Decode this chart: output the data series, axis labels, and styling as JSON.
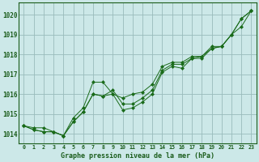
{
  "background_color": "#cce8e8",
  "plot_bg_color": "#cce8e8",
  "grid_color": "#99bbbb",
  "line_color": "#1a6b1a",
  "marker_color": "#1a6b1a",
  "xlabel": "Graphe pression niveau de la mer (hPa)",
  "ylim": [
    1013.5,
    1020.6
  ],
  "xlim": [
    -0.5,
    23.5
  ],
  "yticks": [
    1014,
    1015,
    1016,
    1017,
    1018,
    1019,
    1020
  ],
  "xticks": [
    0,
    1,
    2,
    3,
    4,
    5,
    6,
    7,
    8,
    9,
    10,
    11,
    12,
    13,
    14,
    15,
    16,
    17,
    18,
    19,
    20,
    21,
    22,
    23
  ],
  "xtick_labels": [
    "0",
    "1",
    "2",
    "3",
    "4",
    "5",
    "6",
    "7",
    "8",
    "9",
    "10",
    "11",
    "12",
    "13",
    "14",
    "15",
    "16",
    "17",
    "18",
    "19",
    "20",
    "21",
    "22",
    "23"
  ],
  "series": [
    [
      1014.4,
      1014.3,
      1014.3,
      1014.1,
      1013.9,
      1014.8,
      1015.3,
      1016.6,
      1016.6,
      1016.0,
      1015.8,
      1016.0,
      1016.1,
      1016.5,
      1017.4,
      1017.6,
      1017.6,
      1017.9,
      1017.9,
      1018.4,
      1018.4,
      1019.0,
      1019.4,
      1020.2
    ],
    [
      1014.4,
      1014.2,
      1014.1,
      1014.1,
      1013.9,
      1014.6,
      1015.1,
      1016.0,
      1015.9,
      1016.0,
      1015.2,
      1015.3,
      1015.6,
      1016.0,
      1017.1,
      1017.4,
      1017.3,
      1017.8,
      1017.8,
      1018.3,
      1018.4,
      1019.0,
      1019.8,
      1020.2
    ],
    [
      1014.4,
      1014.2,
      1014.1,
      1014.1,
      1013.9,
      1014.6,
      1015.1,
      1016.0,
      1015.9,
      1016.2,
      1015.5,
      1015.5,
      1015.8,
      1016.2,
      1017.2,
      1017.5,
      1017.5,
      1017.8,
      1017.9,
      1018.3,
      1018.4,
      1019.0,
      1019.8,
      1020.2
    ]
  ]
}
